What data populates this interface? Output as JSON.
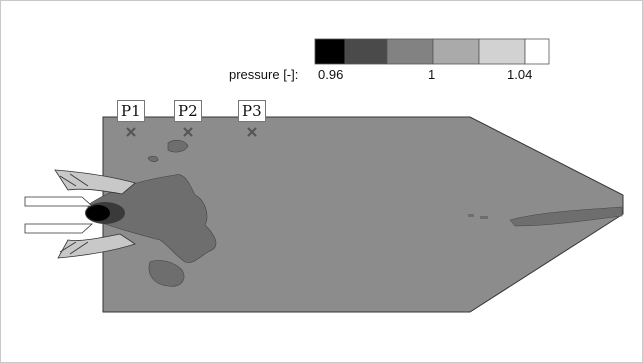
{
  "legend": {
    "title": "pressure [-]:",
    "ticks": [
      "0.96",
      "1",
      "1.04"
    ],
    "swatches": [
      "#000000",
      "#4a4a4a",
      "#828282",
      "#aaaaaa",
      "#d2d2d2",
      "#ffffff"
    ]
  },
  "probes": [
    {
      "label": "P1"
    },
    {
      "label": "P2"
    },
    {
      "label": "P3"
    }
  ],
  "colors": {
    "domain": "#8c8c8c",
    "low_region": "#6e6e6e",
    "very_low": "#3a3a3a",
    "core": "#000000",
    "high_region": "#c8c8c8"
  }
}
